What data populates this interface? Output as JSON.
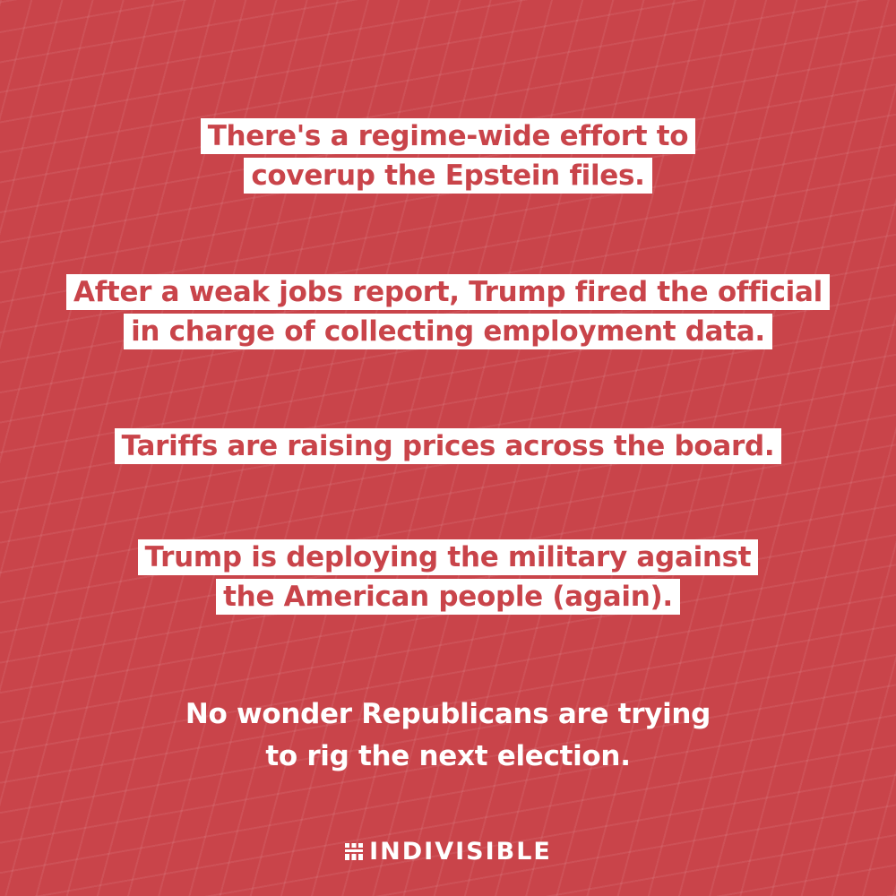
{
  "statements": [
    {
      "lines": [
        "There's a regime-wide effort to",
        "coverup the Epstein files."
      ]
    },
    {
      "lines": [
        "After a weak jobs report, Trump fired the official",
        "in charge of collecting employment data."
      ]
    },
    {
      "lines": [
        "Tariffs are raising prices across the board."
      ]
    },
    {
      "lines": [
        "Trump is deploying the military against",
        "the American people (again)."
      ]
    }
  ],
  "conclusion": {
    "lines": [
      "No wonder Republicans are trying",
      "to rig the next election."
    ]
  },
  "brand": {
    "name": "INDIVISIBLE",
    "icon": "indivisible-logo-icon"
  },
  "colors": {
    "background": "#c9444a",
    "highlight": "#ffffff",
    "text_on_highlight": "#c9444a"
  }
}
